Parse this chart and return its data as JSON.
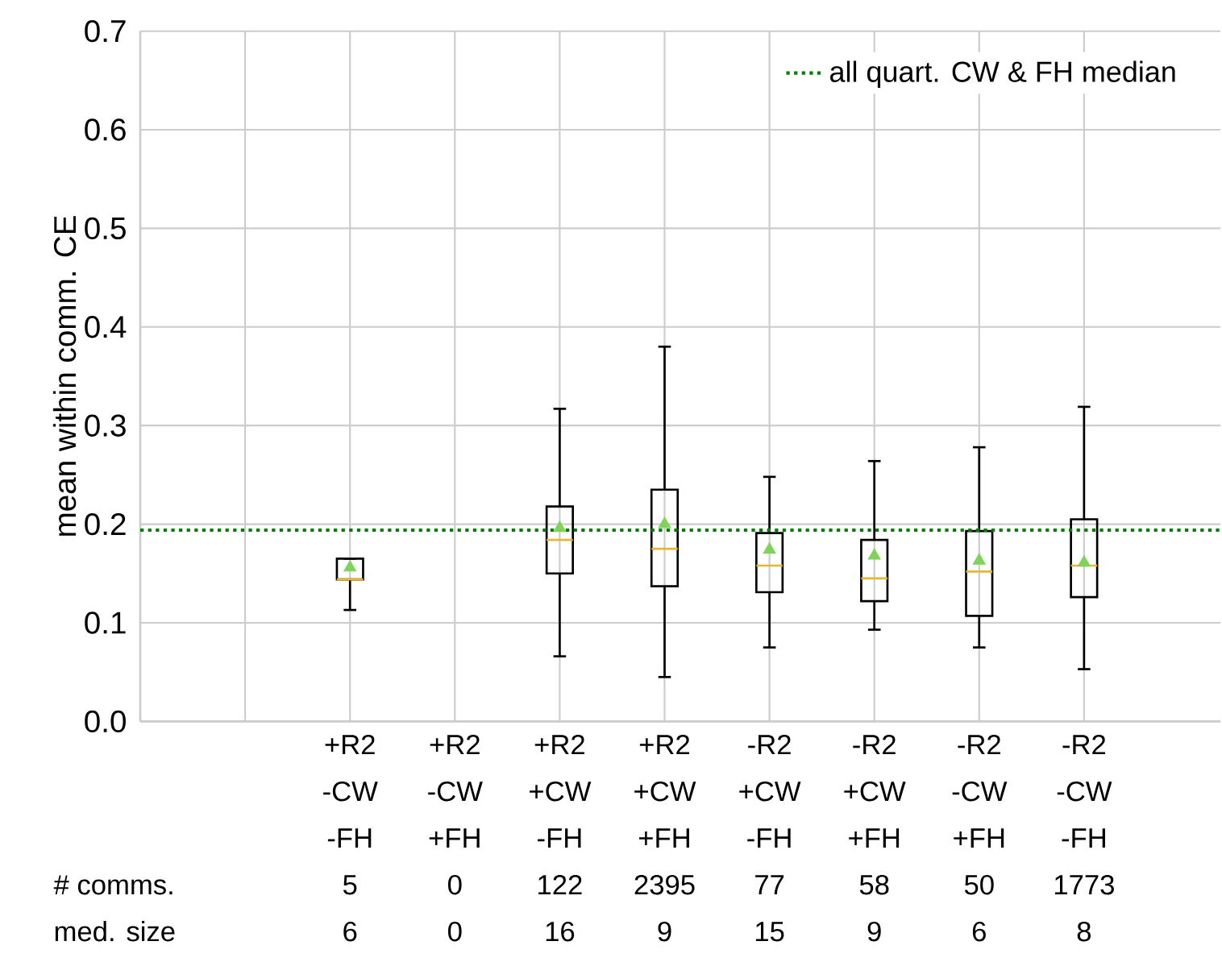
{
  "chart_data": {
    "type": "box",
    "ylabel": "mean within comm. CE",
    "categories": [
      null,
      "+R2\n-CW\n-FH\n5\n6",
      "+R2\n-CW\n+FH\n0\n0",
      "+R2\n+CW\n-FH\n122\n16",
      "+R2\n+CW\n+FH\n2395\n9",
      "-R2\n+CW\n-FH\n77\n15",
      "-R2\n+CW\n+FH\n58\n9",
      "-R2\n-CW\n+FH\n50\n6",
      "-R2\n-CW\n-FH\n1773\n8"
    ],
    "boxes": [
      null,
      {
        "low": 0.113,
        "q1": 0.144,
        "median": 0.144,
        "q3": 0.165,
        "high": 0.165,
        "mean": 0.156
      },
      null,
      {
        "low": 0.066,
        "q1": 0.15,
        "median": 0.184,
        "q3": 0.218,
        "high": 0.317,
        "mean": 0.196
      },
      {
        "low": 0.045,
        "q1": 0.137,
        "median": 0.175,
        "q3": 0.235,
        "high": 0.38,
        "mean": 0.2
      },
      {
        "low": 0.075,
        "q1": 0.131,
        "median": 0.158,
        "q3": 0.191,
        "high": 0.248,
        "mean": 0.174
      },
      {
        "low": 0.093,
        "q1": 0.122,
        "median": 0.145,
        "q3": 0.184,
        "high": 0.264,
        "mean": 0.168
      },
      {
        "low": 0.075,
        "q1": 0.107,
        "median": 0.152,
        "q3": 0.193,
        "high": 0.278,
        "mean": 0.163
      },
      {
        "low": 0.053,
        "q1": 0.126,
        "median": 0.158,
        "q3": 0.205,
        "high": 0.319,
        "mean": 0.161
      }
    ],
    "ylim": [
      0,
      0.7
    ],
    "yticks": [
      {
        "value": 0,
        "label": "0.0"
      },
      0.1,
      0.2,
      0.3,
      0.4,
      0.5,
      0.6,
      0.7
    ],
    "grid": true,
    "legend": "top right",
    "ref_lines": [
      {
        "axis": "y",
        "value": 0.194,
        "label": "all quart. CW & FH median",
        "color": "#008000",
        "line_style": "dotted"
      }
    ],
    "annotations": [
      "# comms.",
      "med. size"
    ]
  }
}
